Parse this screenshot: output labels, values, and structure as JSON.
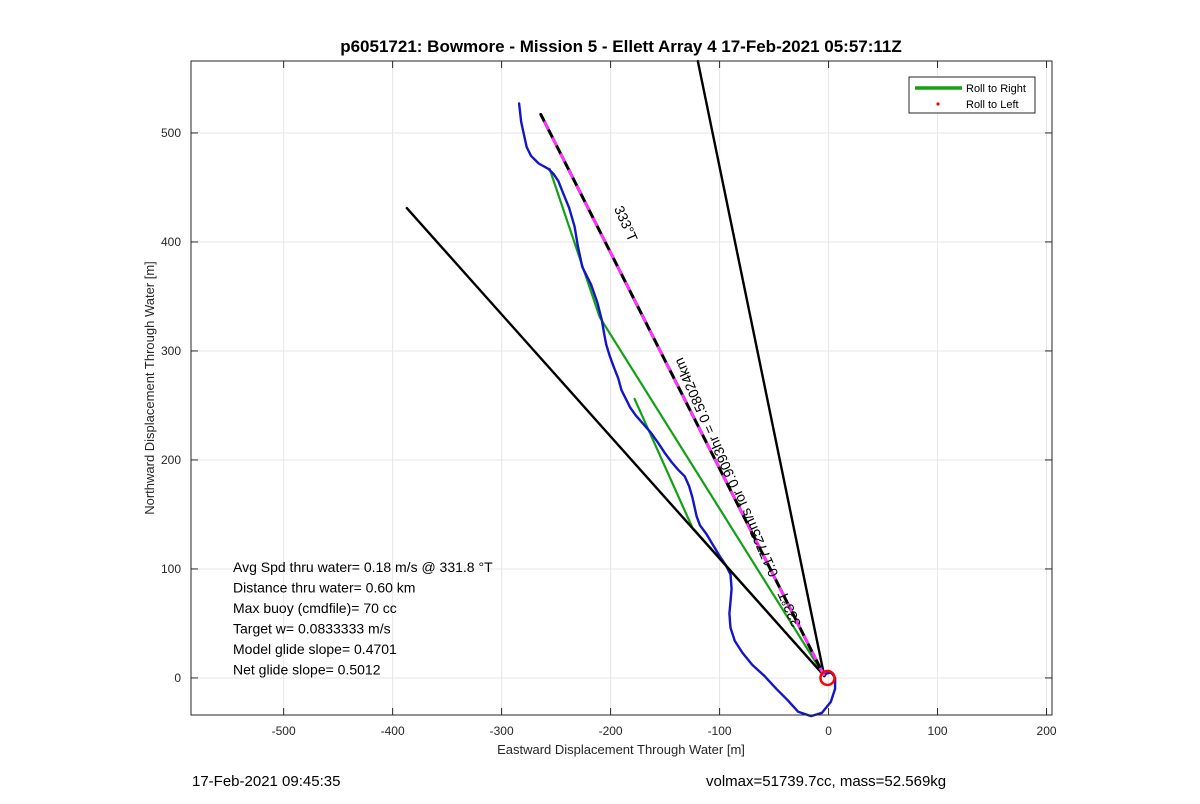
{
  "chart_data": {
    "type": "line",
    "title": "p6051721: Bowmore - Mission 5 - Ellett Array 4 17-Feb-2021 05:57:11Z",
    "xlabel": "Eastward Displacement Through Water [m]",
    "ylabel": "Northward Displacement Through Water [m]",
    "xlim": [
      -585,
      205
    ],
    "ylim": [
      -34,
      566
    ],
    "grid": true,
    "x_ticks": [
      -500,
      -400,
      -300,
      -200,
      -100,
      0,
      100,
      200
    ],
    "y_ticks": [
      0,
      100,
      200,
      300,
      400,
      500
    ],
    "x_tick_labels": [
      "-500",
      "-400",
      "-300",
      "-200",
      "-100",
      "0",
      "100",
      "200"
    ],
    "y_tick_labels": [
      "0",
      "100",
      "200",
      "300",
      "400",
      "500"
    ],
    "legend": {
      "placement": "top-right",
      "entries": [
        {
          "label": "Roll to Right",
          "color": "#14a014",
          "marker": "line"
        },
        {
          "label": "Roll to Left",
          "color": "#ff0000",
          "marker": "dot"
        }
      ]
    },
    "series": [
      {
        "name": "Roll to Right",
        "color": "#14a014",
        "x": [
          -4,
          -210,
          -256
        ],
        "y": [
          2,
          331,
          467
        ]
      },
      {
        "color": "#14a014",
        "x": [
          -4,
          -125,
          -178
        ],
        "y": [
          2,
          138,
          256
        ]
      },
      {
        "color": "#1414c8",
        "x": [
          -284,
          -282,
          -279,
          -277,
          -273,
          -266,
          -257,
          -252,
          -248,
          -244,
          -238,
          -233,
          -230,
          -226,
          -218,
          -212,
          -208,
          -206,
          -204,
          -201,
          -197,
          -193,
          -190,
          -186,
          -182,
          -177,
          -170,
          -163,
          -156,
          -150,
          -144,
          -138,
          -132,
          -128,
          -125,
          -123,
          -121,
          -118,
          -112,
          -106,
          -100,
          -94,
          -90,
          -89,
          -90,
          -91,
          -90,
          -86,
          -79,
          -70,
          -59,
          -48,
          -38,
          -28,
          -16,
          -6,
          2,
          6,
          6,
          4,
          2,
          -2,
          -4
        ],
        "y": [
          527,
          510,
          496,
          487,
          479,
          472,
          467,
          462,
          456,
          446,
          431,
          414,
          396,
          377,
          361,
          344,
          328,
          316,
          306,
          296,
          285,
          275,
          264,
          256,
          248,
          241,
          233,
          225,
          215,
          206,
          198,
          191,
          185,
          176,
          166,
          157,
          148,
          140,
          132,
          122,
          112,
          103,
          95,
          82,
          70,
          59,
          46,
          34,
          23,
          12,
          2,
          -10,
          -20,
          -31,
          -35,
          -32,
          -22,
          -10,
          0,
          3,
          5,
          4,
          2
        ]
      },
      {
        "color": "#000000",
        "x": [
          -4,
          -387
        ],
        "y": [
          2,
          431
        ]
      },
      {
        "color": "#000000",
        "x": [
          -4,
          -120
        ],
        "y": [
          2,
          566
        ]
      },
      {
        "color": "#000000",
        "x": [
          -4,
          -264
        ],
        "y": [
          2,
          517
        ]
      }
    ],
    "markers": [
      {
        "type": "circle",
        "color": "#ff0000",
        "x": -1,
        "y": 0
      }
    ],
    "annotations": [
      {
        "text": "333°T",
        "x": -190,
        "y": 415,
        "color": "#000000"
      },
      {
        "text": "0.17725m/s for 0.9093hr = 0.58024km",
        "x": -90,
        "y": 195,
        "color": "#000000"
      },
      {
        "text": "333°T",
        "x": -32,
        "y": 65,
        "color": "#000000"
      }
    ],
    "stats": [
      "Avg Spd thru water=  0.18 m/s @ 331.8 °T",
      "Distance thru water=  0.60 km",
      "Max buoy (cmdfile)= 70 cc",
      "Target w= 0.0833333 m/s",
      "Model glide slope= 0.4701",
      "Net glide slope= 0.5012"
    ]
  },
  "footer": {
    "timestamp": "17-Feb-2021 09:45:35",
    "info": "volmax=51739.7cc, mass=52.569kg"
  }
}
